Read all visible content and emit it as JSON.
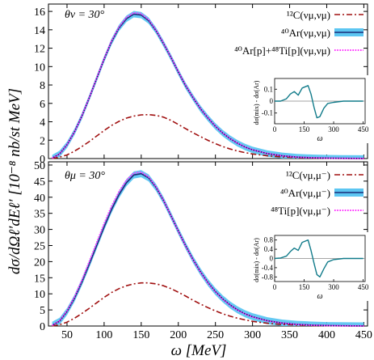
{
  "figure": {
    "ylabel": "dσ/dΩℓ′dEℓ′  [10⁻⁸ nb/st MeV]",
    "xlabel": "ω  [MeV]"
  },
  "colors": {
    "carbon": "#a01010",
    "argon_line": "#1a2c78",
    "argon_band": "#5cc6f2",
    "mix": "#ff33ff",
    "inset_line": "#117b8a",
    "zero_line": "#888888"
  },
  "chart_data": [
    {
      "type": "line",
      "panel": "top",
      "annotation": "θν = 30°",
      "xlim": [
        25,
        455
      ],
      "ylim": [
        0,
        16.8
      ],
      "xticks": [
        50,
        100,
        150,
        200,
        250,
        300,
        350,
        400,
        450
      ],
      "yticks": [
        0,
        2,
        4,
        6,
        8,
        10,
        12,
        14,
        16
      ],
      "legend_position": "top-right",
      "x": [
        30,
        40,
        50,
        60,
        70,
        80,
        90,
        100,
        110,
        120,
        130,
        140,
        150,
        160,
        170,
        180,
        190,
        200,
        210,
        220,
        230,
        240,
        250,
        260,
        270,
        280,
        290,
        300,
        320,
        340,
        360,
        380,
        400,
        420,
        450
      ],
      "series": [
        {
          "name": "¹²C(νμ,νμ)",
          "style": "dash-dot",
          "values": [
            0.02,
            0.15,
            0.4,
            0.8,
            1.3,
            1.85,
            2.45,
            3.05,
            3.6,
            4.05,
            4.4,
            4.62,
            4.75,
            4.78,
            4.7,
            4.5,
            4.15,
            3.7,
            3.25,
            2.8,
            2.38,
            1.98,
            1.62,
            1.3,
            1.04,
            0.82,
            0.64,
            0.5,
            0.3,
            0.18,
            0.1,
            0.06,
            0.03,
            0.02,
            0.01
          ]
        },
        {
          "name": "⁴⁰Ar(νμ,νμ)",
          "style": "line+band",
          "band_halfwidth": 0.35,
          "values": [
            0.05,
            0.5,
            1.5,
            2.9,
            4.6,
            6.6,
            8.7,
            10.8,
            12.7,
            14.2,
            15.2,
            15.7,
            15.6,
            15.0,
            13.9,
            12.5,
            11.0,
            9.4,
            7.9,
            6.6,
            5.4,
            4.4,
            3.5,
            2.75,
            2.15,
            1.65,
            1.25,
            0.95,
            0.54,
            0.3,
            0.16,
            0.09,
            0.05,
            0.03,
            0.01
          ]
        },
        {
          "name": "⁴⁰Ar[p]+⁴⁸Ti[p](νμ,νμ)",
          "style": "dotted",
          "values": [
            0.05,
            0.5,
            1.5,
            2.9,
            4.62,
            6.62,
            8.75,
            10.85,
            12.8,
            14.3,
            15.35,
            15.85,
            15.75,
            15.1,
            13.95,
            12.55,
            11.02,
            9.45,
            7.95,
            6.62,
            5.42,
            4.42,
            3.52,
            2.77,
            2.16,
            1.66,
            1.26,
            0.96,
            0.55,
            0.3,
            0.16,
            0.09,
            0.05,
            0.03,
            0.01
          ]
        }
      ],
      "inset": {
        "ylabel": "dσ(mix) - dσ(Ar)",
        "xlabel": "ω",
        "xlim": [
          0,
          460
        ],
        "ylim": [
          -0.19,
          0.19
        ],
        "xticks": [
          0,
          150,
          300,
          450
        ],
        "xtick_labels": [
          "0",
          "150",
          "300",
          "450"
        ],
        "yticks": [
          -0.1,
          0,
          0.1
        ],
        "ytick_labels": [
          "-0.1",
          "0",
          "0.1"
        ],
        "x": [
          0,
          30,
          60,
          80,
          100,
          120,
          140,
          155,
          170,
          185,
          200,
          215,
          230,
          250,
          270,
          300,
          350,
          400,
          450
        ],
        "values": [
          0.0,
          0.0,
          0.02,
          0.06,
          0.08,
          0.05,
          0.11,
          0.12,
          0.13,
          0.06,
          -0.05,
          -0.14,
          -0.13,
          -0.06,
          -0.02,
          -0.01,
          0.0,
          0.0,
          0.0
        ]
      }
    },
    {
      "type": "line",
      "panel": "bottom",
      "annotation": "θμ = 30°",
      "xlim": [
        25,
        455
      ],
      "ylim": [
        0,
        51
      ],
      "xticks": [
        50,
        100,
        150,
        200,
        250,
        300,
        350,
        400,
        450
      ],
      "yticks": [
        0,
        5,
        10,
        15,
        20,
        25,
        30,
        35,
        40,
        45,
        50
      ],
      "legend_position": "top-right",
      "x": [
        30,
        40,
        50,
        60,
        70,
        80,
        90,
        100,
        110,
        120,
        130,
        140,
        150,
        160,
        170,
        180,
        190,
        200,
        210,
        220,
        230,
        240,
        250,
        260,
        270,
        280,
        290,
        300,
        320,
        340,
        360,
        380,
        400,
        420,
        450
      ],
      "series": [
        {
          "name": "¹²C(νμ,μ⁻)",
          "style": "dash-dot",
          "values": [
            0.05,
            0.4,
            1.2,
            2.4,
            3.9,
            5.5,
            7.2,
            8.9,
            10.4,
            11.6,
            12.5,
            13.1,
            13.4,
            13.4,
            13.1,
            12.5,
            11.6,
            10.5,
            9.3,
            8.0,
            6.8,
            5.7,
            4.7,
            3.8,
            3.05,
            2.4,
            1.9,
            1.45,
            0.85,
            0.48,
            0.27,
            0.15,
            0.08,
            0.04,
            0.02
          ]
        },
        {
          "name": "⁴⁰Ar(νμ,μ⁻)",
          "style": "line+band",
          "band_halfwidth": 1.1,
          "values": [
            0.2,
            1.5,
            4.5,
            8.6,
            13.6,
            19.2,
            25.0,
            30.8,
            36.2,
            40.8,
            44.5,
            46.9,
            47.3,
            46.0,
            43.0,
            39.0,
            34.3,
            29.5,
            24.9,
            20.6,
            16.8,
            13.5,
            10.7,
            8.4,
            6.5,
            5.0,
            3.8,
            2.9,
            1.65,
            0.92,
            0.5,
            0.27,
            0.14,
            0.07,
            0.03
          ]
        },
        {
          "name": "⁴⁸Ti[p](νμ,μ⁻)",
          "style": "dotted",
          "values": [
            0.2,
            1.6,
            4.7,
            9.0,
            14.2,
            20.0,
            25.9,
            31.8,
            37.2,
            41.7,
            45.3,
            47.5,
            47.8,
            46.3,
            43.2,
            39.1,
            34.3,
            29.4,
            24.8,
            20.5,
            16.7,
            13.4,
            10.6,
            8.3,
            6.4,
            4.9,
            3.75,
            2.85,
            1.62,
            0.9,
            0.49,
            0.26,
            0.14,
            0.07,
            0.03
          ]
        }
      ],
      "inset": {
        "ylabel": "dσ(mix) - dσ(Ar)",
        "xlabel": "ω",
        "xlim": [
          0,
          460
        ],
        "ylim": [
          -1.0,
          1.0
        ],
        "xticks": [
          0,
          150,
          300,
          450
        ],
        "xtick_labels": [
          "0",
          "150",
          "300",
          "450"
        ],
        "yticks": [
          -0.8,
          -0.4,
          0,
          0.4,
          0.8
        ],
        "ytick_labels": [
          "-0.8",
          "-0.4",
          "0",
          "0.4",
          "0.8"
        ],
        "x": [
          0,
          30,
          60,
          80,
          100,
          120,
          140,
          155,
          170,
          185,
          200,
          215,
          230,
          250,
          270,
          300,
          350,
          400,
          450
        ],
        "values": [
          0.0,
          0.02,
          0.1,
          0.3,
          0.45,
          0.35,
          0.7,
          0.75,
          0.8,
          0.35,
          -0.2,
          -0.7,
          -0.8,
          -0.45,
          -0.15,
          -0.05,
          0.0,
          0.0,
          0.0
        ]
      }
    }
  ]
}
